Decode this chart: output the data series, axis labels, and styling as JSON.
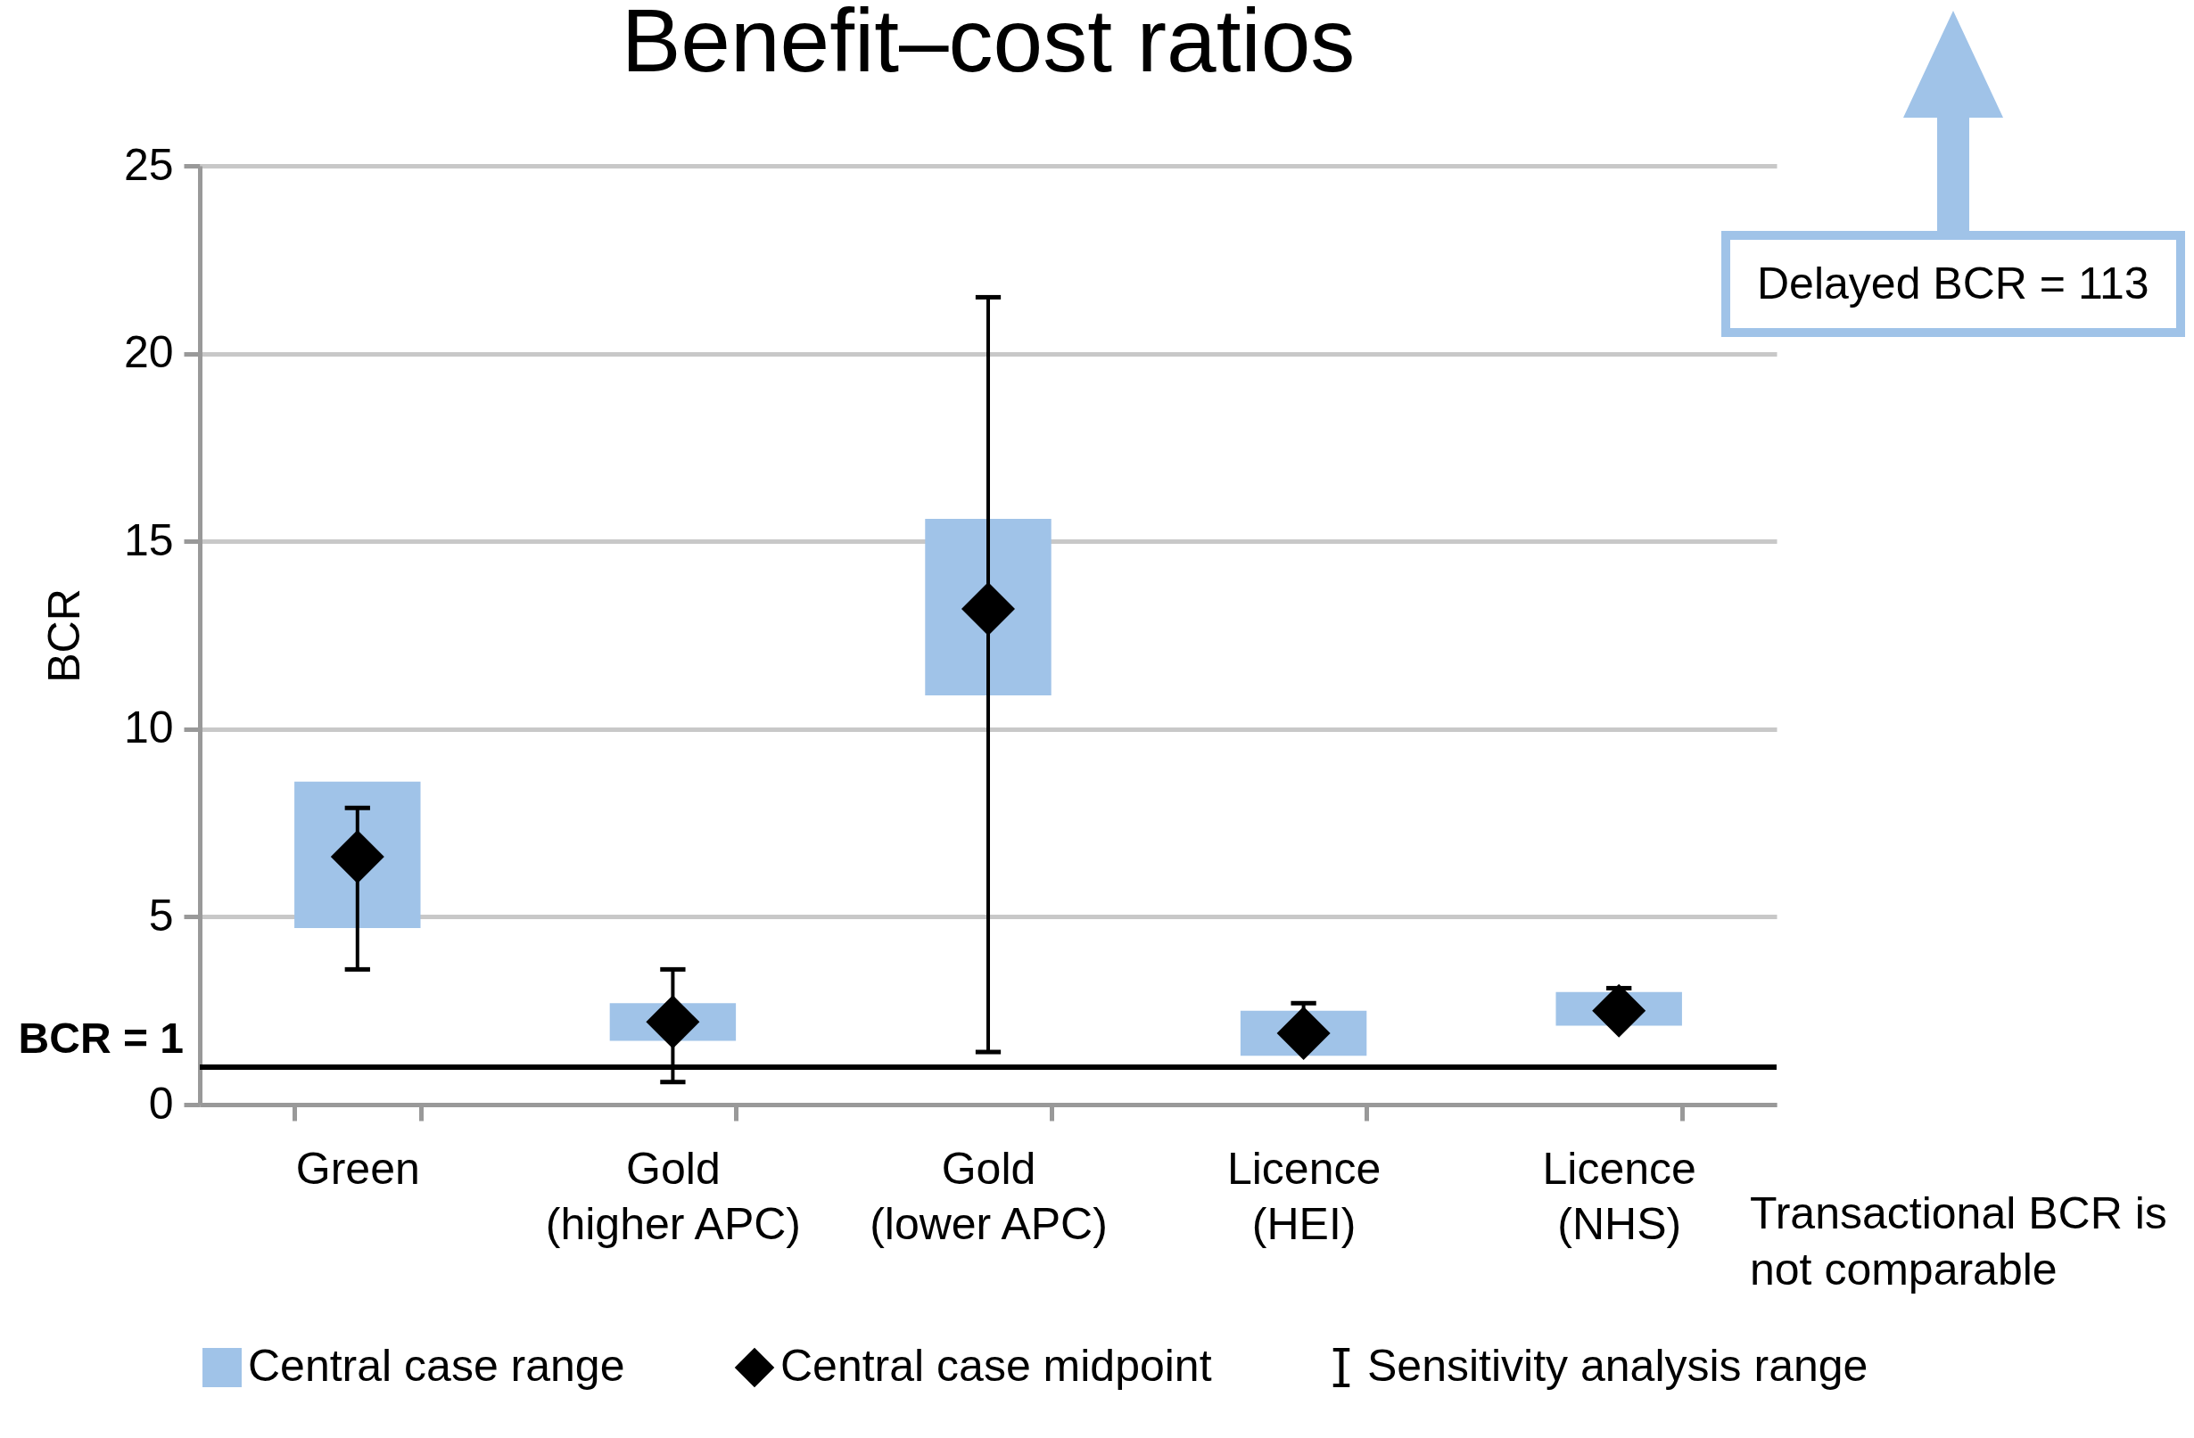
{
  "chart_data": {
    "type": "bar",
    "title": "Benefit–cost ratios",
    "ylabel": "BCR",
    "categories": [
      "Green",
      "Gold (higher APC)",
      "Gold (lower APC)",
      "Licence (HEI)",
      "Licence (NHS)"
    ],
    "series": [
      {
        "name": "Central case range",
        "color": "#a0c3e8",
        "base": [
          4.7,
          1.7,
          10.9,
          1.3,
          2.1
        ],
        "values": [
          3.9,
          1.0,
          4.7,
          1.2,
          0.9
        ]
      },
      {
        "name": "Central case midpoint",
        "type": "scatter",
        "marker": "diamond",
        "color": "#000000",
        "values": [
          6.6,
          2.2,
          13.2,
          1.9,
          2.5
        ],
        "errors": [
          [
            3.6,
            7.9
          ],
          [
            0.6,
            3.6
          ],
          [
            1.4,
            21.5
          ],
          [
            1.9,
            2.7
          ],
          [
            2.5,
            3.1
          ]
        ]
      }
    ],
    "ylim": [
      0,
      25
    ],
    "yticks": [
      0,
      5,
      10,
      15,
      20,
      25
    ],
    "grid": "y",
    "legend": "bottom",
    "ref_lines": [
      {
        "axis": "y",
        "value": 1,
        "label": "BCR = 1",
        "color": "#000000"
      }
    ],
    "annotations": [
      "Delayed BCR = 113",
      "Transactional BCR is not comparable",
      "Sensitivity analysis range"
    ]
  }
}
